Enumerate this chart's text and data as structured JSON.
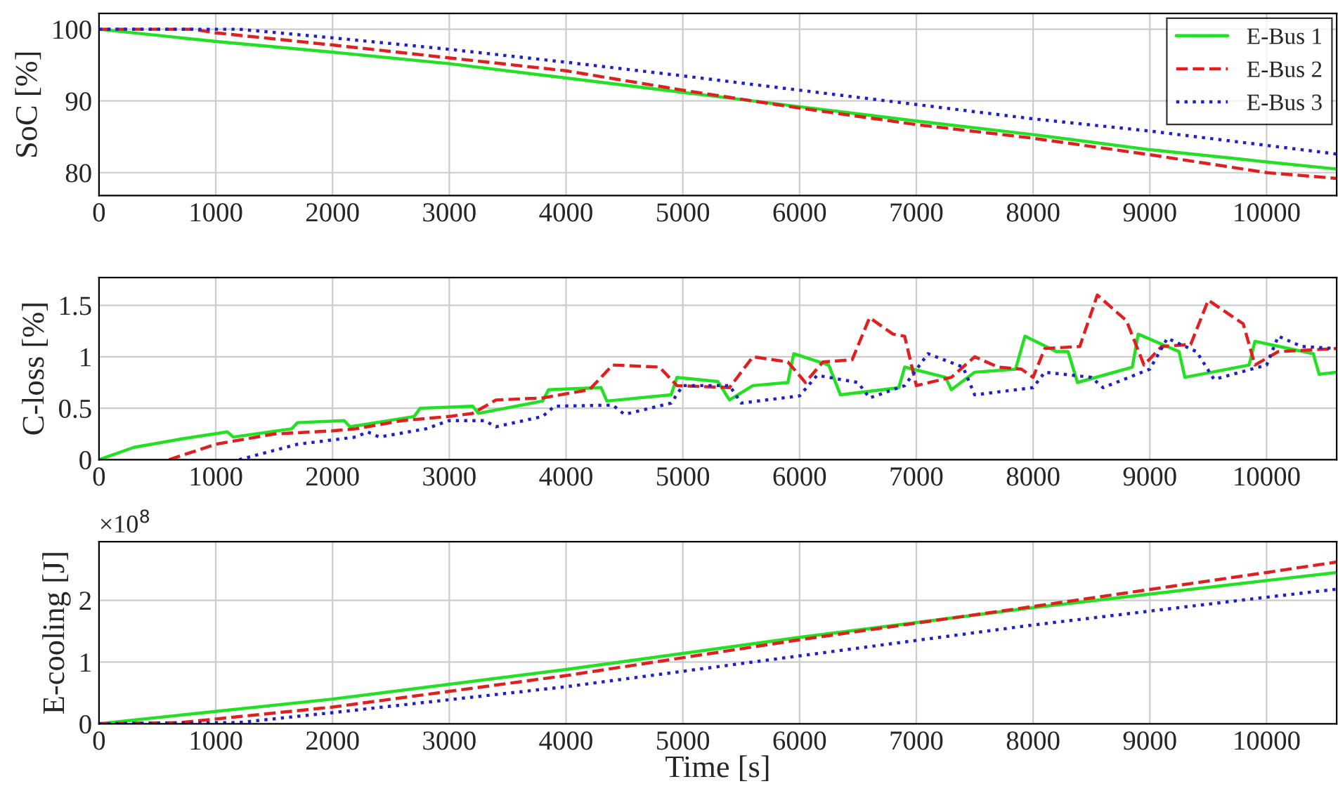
{
  "chart_data": [
    {
      "type": "line",
      "ylabel": "SoC [%]",
      "xlim": [
        0,
        10600
      ],
      "xticks": [
        0,
        1000,
        2000,
        3000,
        4000,
        5000,
        6000,
        7000,
        8000,
        9000,
        10000
      ],
      "ylim": [
        76.8,
        102.2
      ],
      "yticks": [
        80,
        90,
        100
      ],
      "grid": true,
      "legend": "top right",
      "series": [
        {
          "name": "E-Bus 1",
          "color": "#22e022",
          "line_style": "solid",
          "x": [
            0,
            1000,
            2000,
            3000,
            4000,
            5000,
            6000,
            7000,
            8000,
            9000,
            10000,
            10600
          ],
          "values": [
            100,
            98.3,
            96.8,
            95.2,
            93.2,
            91.2,
            89.2,
            87.2,
            85.3,
            83.2,
            81.5,
            80.5
          ]
        },
        {
          "name": "E-Bus 2",
          "color": "#e02020",
          "line_style": "dashed",
          "x": [
            0,
            800,
            1000,
            2000,
            3000,
            4000,
            5000,
            6000,
            7000,
            8000,
            9000,
            10000,
            10600
          ],
          "values": [
            100,
            100,
            99.5,
            97.8,
            96,
            94.2,
            91.5,
            89,
            86.7,
            84.8,
            82.5,
            80,
            79.2
          ]
        },
        {
          "name": "E-Bus 3",
          "color": "#2020c8",
          "line_style": "dotted",
          "x": [
            0,
            1200,
            2000,
            3000,
            4000,
            5000,
            6000,
            7000,
            8000,
            9000,
            10000,
            10600
          ],
          "values": [
            100,
            100,
            98.8,
            97.2,
            95.4,
            93.5,
            91.5,
            89.5,
            87.5,
            85.8,
            83.8,
            82.6
          ]
        }
      ]
    },
    {
      "type": "line",
      "ylabel": "C-loss [%]",
      "xlim": [
        0,
        10600
      ],
      "xticks": [
        0,
        1000,
        2000,
        3000,
        4000,
        5000,
        6000,
        7000,
        8000,
        9000,
        10000
      ],
      "ylim": [
        0,
        1.77
      ],
      "yticks": [
        0,
        0.5,
        1,
        1.5
      ],
      "grid": true,
      "series": [
        {
          "color": "#22e022",
          "line_style": "solid",
          "x": [
            0,
            300,
            700,
            1100,
            1150,
            1650,
            1700,
            2100,
            2150,
            2700,
            2750,
            3200,
            3250,
            3800,
            3850,
            4300,
            4350,
            4900,
            4950,
            5300,
            5400,
            5600,
            5900,
            5950,
            6250,
            6350,
            6850,
            6900,
            7250,
            7300,
            7500,
            7850,
            7930,
            8200,
            8300,
            8380,
            8850,
            8900,
            9250,
            9300,
            9850,
            9900,
            10400,
            10450,
            10600
          ],
          "values": [
            0,
            0.12,
            0.2,
            0.27,
            0.22,
            0.3,
            0.36,
            0.38,
            0.32,
            0.42,
            0.5,
            0.52,
            0.45,
            0.57,
            0.68,
            0.7,
            0.57,
            0.63,
            0.8,
            0.76,
            0.58,
            0.72,
            0.75,
            1.03,
            0.92,
            0.63,
            0.7,
            0.9,
            0.8,
            0.68,
            0.85,
            0.88,
            1.2,
            1.05,
            1.05,
            0.75,
            0.9,
            1.22,
            1.05,
            0.8,
            0.92,
            1.15,
            1.03,
            0.83,
            0.85
          ]
        },
        {
          "color": "#e02020",
          "line_style": "dashed",
          "x": [
            600,
            1000,
            1500,
            2000,
            2200,
            2600,
            3000,
            3200,
            3400,
            3800,
            4200,
            4400,
            4800,
            4950,
            5400,
            5600,
            5900,
            6050,
            6200,
            6450,
            6600,
            6800,
            6900,
            7000,
            7300,
            7500,
            7700,
            7900,
            8000,
            8100,
            8400,
            8550,
            8800,
            8950,
            9100,
            9350,
            9500,
            9800,
            9900,
            10100,
            10600
          ],
          "values": [
            0,
            0.15,
            0.25,
            0.28,
            0.3,
            0.38,
            0.42,
            0.45,
            0.58,
            0.6,
            0.68,
            0.92,
            0.9,
            0.72,
            0.7,
            1.0,
            0.95,
            0.75,
            0.95,
            0.97,
            1.38,
            1.22,
            1.2,
            0.72,
            0.8,
            1.0,
            0.9,
            0.88,
            0.8,
            1.08,
            1.1,
            1.6,
            1.35,
            0.92,
            1.1,
            1.12,
            1.55,
            1.32,
            0.92,
            1.05,
            1.08
          ]
        },
        {
          "color": "#2020c8",
          "line_style": "dotted",
          "x": [
            1200,
            1700,
            2200,
            2300,
            2400,
            2800,
            3000,
            3300,
            3400,
            3800,
            3900,
            4400,
            4500,
            4900,
            5000,
            5400,
            5500,
            6000,
            6150,
            6500,
            6600,
            6900,
            7100,
            7400,
            7500,
            8000,
            8100,
            8500,
            8600,
            9000,
            9150,
            9400,
            9550,
            10000,
            10100,
            10300,
            10600
          ],
          "values": [
            0,
            0.15,
            0.22,
            0.27,
            0.22,
            0.3,
            0.38,
            0.38,
            0.32,
            0.42,
            0.52,
            0.53,
            0.44,
            0.55,
            0.72,
            0.72,
            0.55,
            0.62,
            0.82,
            0.75,
            0.6,
            0.72,
            1.03,
            0.9,
            0.63,
            0.7,
            0.85,
            0.8,
            0.7,
            0.88,
            1.18,
            1.05,
            0.78,
            0.92,
            1.2,
            1.1,
            1.08
          ]
        }
      ]
    },
    {
      "type": "line",
      "ylabel": "E-cooling [J]",
      "xlabel": "Time [s]",
      "annotations": [
        "×10$^{8}$"
      ],
      "xlim": [
        0,
        10600
      ],
      "xticks": [
        0,
        1000,
        2000,
        3000,
        4000,
        5000,
        6000,
        7000,
        8000,
        9000,
        10000
      ],
      "ylim": [
        0,
        2.95
      ],
      "yticks": [
        0,
        1,
        2
      ],
      "grid": true,
      "series": [
        {
          "color": "#22e022",
          "line_style": "solid",
          "x": [
            0,
            2000,
            4000,
            6000,
            8000,
            10000,
            10600
          ],
          "values": [
            0,
            0.4,
            0.88,
            1.4,
            1.88,
            2.32,
            2.45
          ]
        },
        {
          "color": "#e02020",
          "line_style": "dashed",
          "x": [
            0,
            700,
            2000,
            4000,
            6000,
            8000,
            10000,
            10600
          ],
          "values": [
            0,
            0.02,
            0.27,
            0.78,
            1.36,
            1.9,
            2.45,
            2.62
          ]
        },
        {
          "color": "#2020c8",
          "line_style": "dotted",
          "x": [
            0,
            1200,
            2000,
            4000,
            6000,
            8000,
            10000,
            10600
          ],
          "values": [
            0,
            0.02,
            0.18,
            0.6,
            1.1,
            1.6,
            2.05,
            2.18
          ]
        }
      ]
    }
  ]
}
